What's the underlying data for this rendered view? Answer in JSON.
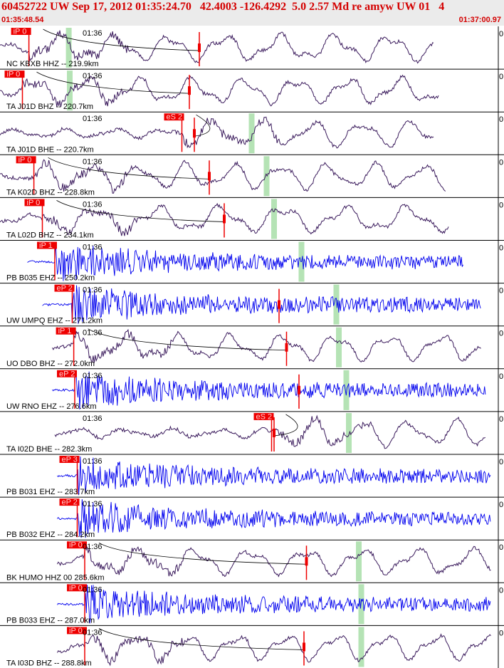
{
  "header": {
    "title": "60452722 UW Sep 17, 2012 01:35:24.70   42.4003 -126.4292  5.0 2.57 Md re amyw UW 01   4",
    "time_start": "01:35:48.54",
    "time_end": "01:37:00.97"
  },
  "colors": {
    "header_text": "#d40000",
    "broadband_trace": "#3a1a5c",
    "shortperiod_trace": "#0000ee",
    "pick_marker": "#ee0000",
    "theoretical_arrival": "#b5e3b5",
    "separator": "#000000"
  },
  "chart_data": {
    "type": "line",
    "title": "60452722 UW Sep 17, 2012 01:35:24.70   42.4003 -126.4292  5.0 2.57 Md re amyw UW 01   4",
    "x_range": [
      "01:35:48.54",
      "01:37:00.97"
    ],
    "minute_tick_label": "01:36",
    "baseline_label": "0",
    "series": [
      {
        "label": "NC KBXB HHZ -- 219.9km",
        "pick": "iP 0",
        "kind": "bb",
        "t_pick": 0.058,
        "t_s": 0.4,
        "t_green": 0.138,
        "t_end": 0.87,
        "t_start": 0.0
      },
      {
        "label": "TA J01D BHZ -- 220.7km",
        "pick": "iP 0",
        "kind": "bb",
        "t_pick": 0.045,
        "t_s": 0.38,
        "t_green": 0.14,
        "t_end": 0.88,
        "t_start": 0.0
      },
      {
        "label": "TA J01D BHE -- 220.7km",
        "pick": "eS 2",
        "kind": "bb",
        "t_pick": 0.365,
        "t_s": 0.39,
        "t_green": 0.505,
        "t_end": 0.87,
        "t_start": 0.0
      },
      {
        "label": "TA K02D BHZ -- 228.8km",
        "pick": "iP 0",
        "kind": "bb",
        "t_pick": 0.068,
        "t_s": 0.42,
        "t_green": 0.535,
        "t_end": 0.895,
        "t_start": 0.0
      },
      {
        "label": "TA L02D BHZ -- 234.1km",
        "pick": "iP 0",
        "kind": "bb",
        "t_pick": 0.085,
        "t_s": 0.45,
        "t_green": 0.55,
        "t_end": 0.9,
        "t_start": 0.0
      },
      {
        "label": "PB B035 EHZ -- 250.2km",
        "pick": "iP 1",
        "kind": "sp",
        "t_pick": 0.11,
        "t_s": 0.0,
        "t_green": 0.605,
        "t_end": 0.93,
        "t_start": 0.055
      },
      {
        "label": "UW UMPQ EHZ -- 271.2km",
        "pick": "eP 2",
        "kind": "sp",
        "t_pick": 0.145,
        "t_s": 0.56,
        "t_green": 0.675,
        "t_end": 0.965,
        "t_start": 0.085
      },
      {
        "label": "UO DBO BHZ -- 272.0km",
        "pick": "iP 1",
        "kind": "bb",
        "t_pick": 0.148,
        "t_s": 0.575,
        "t_green": 0.68,
        "t_end": 0.965,
        "t_start": 0.105
      },
      {
        "label": "UW RNO EHZ -- 276.6km",
        "pick": "eP 2",
        "kind": "sp",
        "t_pick": 0.15,
        "t_s": 0.6,
        "t_green": 0.695,
        "t_end": 0.975,
        "t_start": 0.105
      },
      {
        "label": "TA I02D BHE -- 282.3km",
        "pick": "eS 2",
        "kind": "bb",
        "t_pick": 0.545,
        "t_s": 0.55,
        "t_green": 0.7,
        "t_end": 0.975,
        "t_start": 0.11
      },
      {
        "label": "PB B031 EHZ -- 283.7km",
        "pick": "eP 3",
        "kind": "sp",
        "t_pick": 0.155,
        "t_s": 0.0,
        "t_green": 0.0,
        "t_end": 0.985,
        "t_start": 0.115
      },
      {
        "label": "PB B032 EHZ -- 284.2km",
        "pick": "eP 2",
        "kind": "sp",
        "t_pick": 0.155,
        "t_s": 0.0,
        "t_green": 0.0,
        "t_end": 0.985,
        "t_start": 0.115
      },
      {
        "label": "BK HUMO HHZ 00 285.6km",
        "pick": "iP 0",
        "kind": "bb",
        "t_pick": 0.17,
        "t_s": 0.615,
        "t_green": 0.72,
        "t_end": 0.985,
        "t_start": 0.115
      },
      {
        "label": "PB B033 EHZ -- 287.0km",
        "pick": "iP 0",
        "kind": "sp",
        "t_pick": 0.17,
        "t_s": 0.0,
        "t_green": 0.725,
        "t_end": 0.985,
        "t_start": 0.115
      },
      {
        "label": "TA I03D BHZ -- 288.8km",
        "pick": "iP 0",
        "kind": "bb",
        "t_pick": 0.17,
        "t_s": 0.61,
        "t_green": 0.725,
        "t_end": 0.985,
        "t_start": 0.115
      }
    ]
  }
}
